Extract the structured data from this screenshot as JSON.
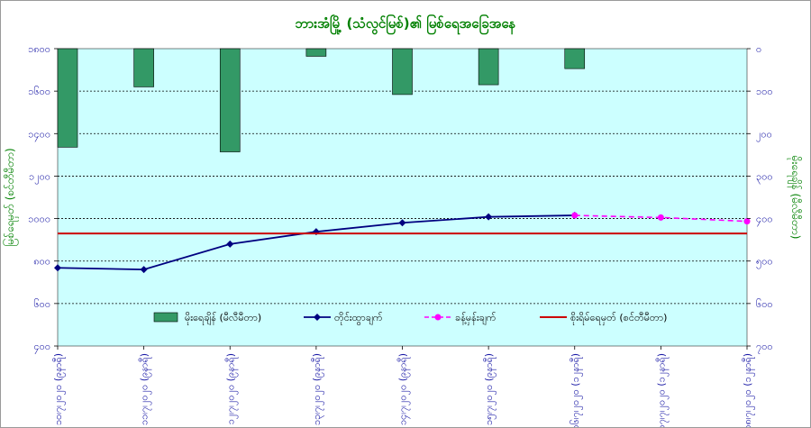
{
  "chart_data": {
    "type": "bar+line",
    "title": "ဘားအံမြို့ (သံလွင်မြစ်)၏ မြစ်ရေအခြေအနေ",
    "ylabel_left": "မြစ်ရေမှတ် (စင်တီမီတာ)",
    "ylabel_right": "မိုးရေချိန် (မီလီမီတာ)",
    "left_axis": {
      "min": 400,
      "max": 1800,
      "ticks": [
        400,
        600,
        800,
        1000,
        1200,
        1400,
        1600,
        1800
      ],
      "tick_labels": [
        "၄၀၀",
        "၆၀၀",
        "၈၀၀",
        "၁၀၀၀",
        "၁၂၀၀",
        "၁၄၀၀",
        "၁၆၀၀",
        "၁၈၀၀"
      ]
    },
    "right_axis": {
      "min": 0,
      "max": 700,
      "reversed": true,
      "ticks": [
        0,
        100,
        200,
        300,
        400,
        500,
        600,
        700
      ],
      "tick_labels": [
        "၀",
        "၁၀၀",
        "၂၀၀",
        "၃၀၀",
        "၄၀၀",
        "၅၀၀",
        "၆၀၀",
        "၇၀၀"
      ]
    },
    "categories": [
      "၁၀၊၇၊၂၀၂၀ (၉နာရီ)",
      "၁၁၊၇၊၂၀၂၀ (၉နာရီ)",
      "၁၂၊၇၊၂၀၂၀ (၉နာရီ)",
      "၁၃၊၇၊၂၀၂၀ (၉နာရီ)",
      "၁၄၊၇၊၂၀၂၀ (၉နာရီ)",
      "၁၅၊၇၊၂၀၂၀ (၉နာရီ)",
      "၁၆၊၇၊၂၀၂၀ (၁၂နာရီ)",
      "၁၇၊၇၊၂၀၂၀ (၁၂နာရီ)",
      "၁၈၊၇၊၂၀၂၀ (၁၂နာရီ)"
    ],
    "series": [
      {
        "name": "မိုးရေချိန် (မီလီမီတာ)",
        "kind": "bar",
        "axis": "right",
        "color": "#339966",
        "points": [
          [
            0,
            232
          ],
          [
            1,
            90
          ],
          [
            2,
            243
          ],
          [
            3,
            18
          ],
          [
            4,
            108
          ],
          [
            5,
            85
          ],
          [
            6,
            47
          ]
        ]
      },
      {
        "name": "တိုင်းထွာချက်",
        "kind": "line",
        "axis": "left",
        "color": "#000080",
        "points": [
          [
            0,
            768
          ],
          [
            1,
            760
          ],
          [
            2,
            880
          ],
          [
            3,
            938
          ],
          [
            4,
            980
          ],
          [
            5,
            1008
          ],
          [
            6,
            1015
          ]
        ]
      },
      {
        "name": "ခန့်မှန်းချက်",
        "kind": "line-dashed",
        "axis": "left",
        "color": "#ff00ff",
        "points": [
          [
            6,
            1015
          ],
          [
            7,
            1005
          ],
          [
            8,
            987
          ]
        ]
      },
      {
        "name": "စိုးရိမ်ရေမှတ် (စင်တီမီတာ)",
        "kind": "hline",
        "axis": "left",
        "color": "#cc0000",
        "value": 930
      }
    ],
    "colors": {
      "plot_background": "#ccffff",
      "text": "#1a1aa6",
      "title": "#008000",
      "axis_title": "#008000"
    },
    "grid": true,
    "legend_position": "bottom, inside plot"
  }
}
